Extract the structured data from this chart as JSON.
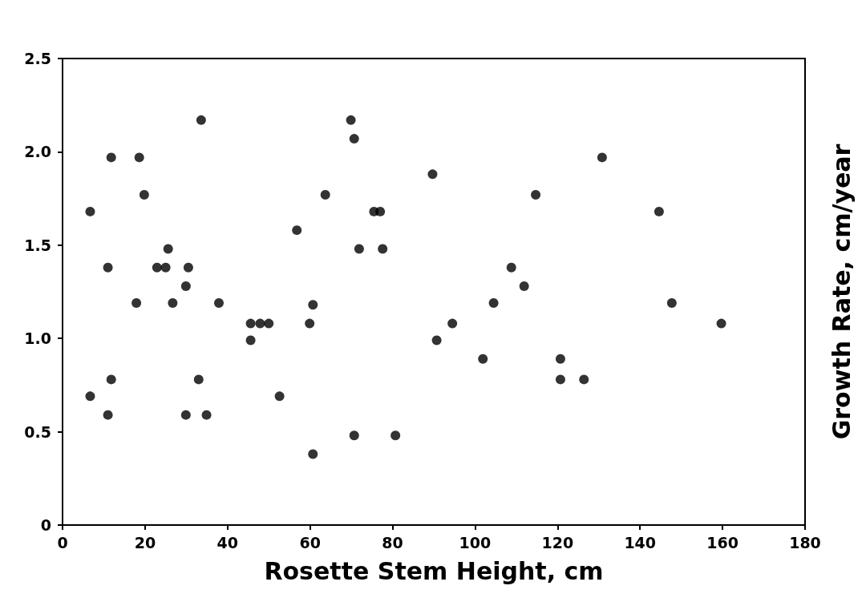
{
  "chart_data": {
    "type": "scatter",
    "xlabel": "Rosette Stem Height, cm",
    "ylabel": "Growth Rate, cm/year",
    "x": [
      33.6,
      69.9,
      70.7,
      11.8,
      18.6,
      19.8,
      63.7,
      6.7,
      75.5,
      77.0,
      56.8,
      25.6,
      71.9,
      77.6,
      11.0,
      22.9,
      25.0,
      30.5,
      29.9,
      17.9,
      26.7,
      37.9,
      60.7,
      45.6,
      47.9,
      50.0,
      59.9,
      45.6,
      11.8,
      33.0,
      6.7,
      52.6,
      11.0,
      29.9,
      34.9,
      70.7,
      80.7,
      60.7,
      130.8,
      89.7,
      114.7,
      144.6,
      108.8,
      111.9,
      104.5,
      147.7,
      94.5,
      159.7,
      90.7,
      101.9,
      120.7,
      120.7,
      126.4
    ],
    "values": [
      2.17,
      2.17,
      2.07,
      1.97,
      1.97,
      1.77,
      1.77,
      1.68,
      1.68,
      1.68,
      1.58,
      1.48,
      1.48,
      1.48,
      1.38,
      1.38,
      1.38,
      1.38,
      1.28,
      1.19,
      1.19,
      1.19,
      1.18,
      1.08,
      1.08,
      1.08,
      1.08,
      0.99,
      0.78,
      0.78,
      0.69,
      0.69,
      0.59,
      0.59,
      0.59,
      0.48,
      0.48,
      0.38,
      1.97,
      1.88,
      1.77,
      1.68,
      1.38,
      1.28,
      1.19,
      1.19,
      1.08,
      1.08,
      0.99,
      0.89,
      0.89,
      0.78,
      0.78
    ],
    "color": "#000000",
    "marker": "circle",
    "grid": false,
    "xlim": [
      0,
      180
    ],
    "xticks": [
      0,
      20,
      40,
      60,
      80,
      100,
      120,
      140,
      160,
      180
    ],
    "ylim": [
      0,
      2.5
    ],
    "yticks": [
      0,
      0.5,
      {
        "value": 1,
        "label": "1.0"
      },
      1.5,
      {
        "value": 2,
        "label": "2.0"
      },
      2.5
    ]
  }
}
